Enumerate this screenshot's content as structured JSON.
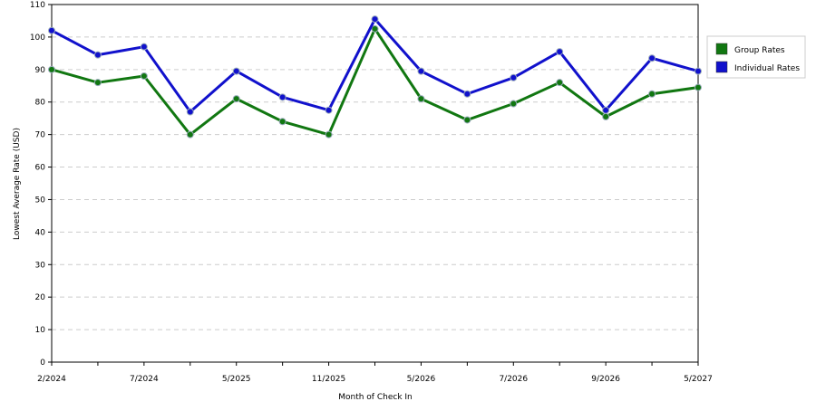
{
  "chart_data": {
    "type": "line",
    "x_label": "Month of Check In",
    "y_label": "Lowest Average Rate (USD)",
    "categories": [
      "2/2024",
      null,
      "7/2024",
      null,
      "5/2025",
      null,
      "11/2025",
      null,
      "5/2026",
      null,
      "7/2026",
      null,
      "9/2026",
      null,
      "5/2027"
    ],
    "series": [
      {
        "name": "Group Rates",
        "color": "#117711",
        "values": [
          90,
          86,
          88,
          70,
          81,
          74,
          70,
          102.5,
          81,
          74.5,
          79.5,
          86,
          75.5,
          82.5,
          84.5
        ]
      },
      {
        "name": "Individual Rates",
        "color": "#1111cc",
        "values": [
          102,
          94.5,
          97,
          77,
          89.5,
          81.5,
          77.5,
          105.5,
          89.5,
          82.5,
          87.5,
          95.5,
          77.5,
          93.5,
          89.5
        ]
      }
    ],
    "ylim": [
      0,
      110
    ],
    "yticks": [
      0,
      10,
      20,
      30,
      40,
      50,
      60,
      70,
      80,
      90,
      100,
      110
    ],
    "grid": true,
    "legend": "right"
  }
}
